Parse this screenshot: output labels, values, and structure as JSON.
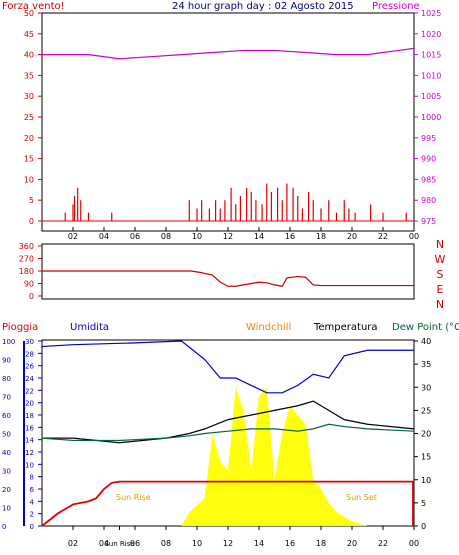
{
  "colors": {
    "wind": "#e00000",
    "pressure": "#cc00cc",
    "direction": "#cc0000",
    "rain": "#e00000",
    "humidity": "#0000cc",
    "windchill": "#ff8000",
    "temperature": "#000000",
    "dewpoint": "#006633",
    "solar": "#ffff00",
    "sun_label": "#d0a000",
    "axis_left_top": "#cc0000",
    "axis_left_bottom": "#0000cc",
    "frame": "#000000"
  },
  "top": {
    "left_title": "Forza vento!",
    "center_title": "24 hour graph day : 02 Agosto 2015",
    "right_title": "Pressione"
  },
  "bottom": {
    "legend": {
      "rain": "Pioggia",
      "humidity": "Umidita",
      "windchill": "Windchill",
      "temperature": "Temperatura",
      "dewpoint": "Dew Point (°C"
    },
    "sunrise_label": "Sun Rise",
    "sunset_label": "Sun Set",
    "sun_axis_label": "Sun Rise"
  },
  "chart_data": [
    {
      "type": "bar",
      "id": "wind-and-pressure",
      "x_ticks": [
        "02",
        "04",
        "06",
        "08",
        "10",
        "12",
        "14",
        "16",
        "18",
        "20",
        "22",
        "00"
      ],
      "left_axis": {
        "ticks": [
          0,
          5,
          10,
          15,
          20,
          25,
          30,
          35,
          40,
          45,
          50
        ],
        "ylim": [
          0,
          50
        ]
      },
      "right_axis": {
        "ticks": [
          975,
          980,
          985,
          990,
          995,
          1000,
          1005,
          1010,
          1015,
          1020,
          1025
        ],
        "ylim": [
          975,
          1025
        ]
      },
      "series": [
        {
          "name": "Forza vento!",
          "kind": "bar",
          "points": [
            [
              1.5,
              2
            ],
            [
              2.0,
              4
            ],
            [
              2.1,
              6
            ],
            [
              2.3,
              8
            ],
            [
              2.5,
              5
            ],
            [
              3.0,
              2
            ],
            [
              4.5,
              2
            ],
            [
              9.5,
              5
            ],
            [
              10.0,
              3
            ],
            [
              10.3,
              5
            ],
            [
              10.8,
              3
            ],
            [
              11.2,
              5
            ],
            [
              11.5,
              3
            ],
            [
              11.8,
              5
            ],
            [
              12.2,
              8
            ],
            [
              12.5,
              4
            ],
            [
              12.8,
              6
            ],
            [
              13.2,
              8
            ],
            [
              13.5,
              7
            ],
            [
              13.8,
              5
            ],
            [
              14.2,
              4
            ],
            [
              14.5,
              9
            ],
            [
              14.8,
              7
            ],
            [
              15.2,
              8
            ],
            [
              15.5,
              5
            ],
            [
              15.8,
              9
            ],
            [
              16.2,
              8
            ],
            [
              16.5,
              6
            ],
            [
              16.8,
              3
            ],
            [
              17.2,
              7
            ],
            [
              17.5,
              5
            ],
            [
              18.0,
              3
            ],
            [
              18.5,
              5
            ],
            [
              19.0,
              2
            ],
            [
              19.5,
              5
            ],
            [
              19.8,
              3
            ],
            [
              20.2,
              2
            ],
            [
              21.2,
              4
            ],
            [
              22.0,
              2
            ],
            [
              23.5,
              2
            ]
          ]
        },
        {
          "name": "Pressione",
          "kind": "line",
          "points": [
            [
              0,
              1015
            ],
            [
              1,
              1015
            ],
            [
              3,
              1015
            ],
            [
              5,
              1014
            ],
            [
              7,
              1014.5
            ],
            [
              9,
              1015
            ],
            [
              11,
              1015.5
            ],
            [
              13,
              1016
            ],
            [
              15,
              1016
            ],
            [
              17,
              1015.5
            ],
            [
              19,
              1015
            ],
            [
              21,
              1015
            ],
            [
              23,
              1016
            ],
            [
              24,
              1016.5
            ]
          ]
        }
      ]
    },
    {
      "type": "line",
      "id": "wind-direction",
      "x_ticks": [],
      "left_axis": {
        "ticks": [
          0,
          90,
          180,
          270,
          360
        ],
        "ylim": [
          0,
          360
        ]
      },
      "right_labels": [
        "N",
        "W",
        "S",
        "E",
        "N"
      ],
      "series": [
        {
          "name": "direction",
          "points": [
            [
              0,
              180
            ],
            [
              9.6,
              180
            ],
            [
              10.2,
              170
            ],
            [
              11,
              150
            ],
            [
              11.5,
              100
            ],
            [
              12,
              70
            ],
            [
              12.5,
              70
            ],
            [
              13,
              80
            ],
            [
              13.5,
              90
            ],
            [
              14,
              100
            ],
            [
              14.5,
              95
            ],
            [
              15,
              80
            ],
            [
              15.5,
              70
            ],
            [
              15.8,
              130
            ],
            [
              16.5,
              140
            ],
            [
              17,
              135
            ],
            [
              17.5,
              80
            ],
            [
              18,
              75
            ],
            [
              20,
              75
            ],
            [
              24,
              75
            ]
          ]
        }
      ]
    },
    {
      "type": "line",
      "id": "rain-humidity-temperature",
      "x_ticks": [
        "02",
        "04",
        "Sun Rise",
        "06",
        "08",
        "10",
        "12",
        "14",
        "16",
        "18",
        "20",
        "22",
        "00"
      ],
      "left_axis_rain": {
        "ticks": [
          0,
          2,
          4,
          6,
          8,
          10,
          12,
          14,
          16,
          18,
          20,
          22,
          24,
          26,
          28,
          30
        ],
        "ylim": [
          0,
          30
        ]
      },
      "left_axis_humidity": {
        "ticks": [
          0,
          10,
          20,
          30,
          40,
          50,
          60,
          70,
          80,
          90,
          100
        ],
        "ylim": [
          0,
          100
        ]
      },
      "right_axis": {
        "ticks": [
          0,
          5,
          10,
          15,
          20,
          25,
          30,
          35,
          40
        ],
        "ylim": [
          0,
          40
        ]
      },
      "series": [
        {
          "name": "Pioggia",
          "points": [
            [
              0,
              0
            ],
            [
              1,
              2
            ],
            [
              2,
              3.5
            ],
            [
              3,
              4
            ],
            [
              3.5,
              4.5
            ],
            [
              4,
              6
            ],
            [
              4.5,
              7
            ],
            [
              5,
              7.2
            ],
            [
              24,
              7.2
            ]
          ]
        },
        {
          "name": "Umidita",
          "points": [
            [
              0,
              97
            ],
            [
              2,
              98
            ],
            [
              6,
              99
            ],
            [
              9,
              100
            ],
            [
              10.5,
              90
            ],
            [
              11.5,
              80
            ],
            [
              12.5,
              80
            ],
            [
              13.5,
              76
            ],
            [
              14.5,
              72
            ],
            [
              15.5,
              72
            ],
            [
              16.5,
              76
            ],
            [
              17.5,
              82
            ],
            [
              18.5,
              80
            ],
            [
              19.5,
              92
            ],
            [
              21,
              95
            ],
            [
              24,
              95
            ]
          ]
        },
        {
          "name": "Temperatura",
          "points": [
            [
              0,
              19
            ],
            [
              2,
              19
            ],
            [
              5,
              18
            ],
            [
              8,
              19
            ],
            [
              9.5,
              20
            ],
            [
              10.5,
              21
            ],
            [
              12,
              23
            ],
            [
              13.5,
              24
            ],
            [
              15,
              25
            ],
            [
              16.5,
              26
            ],
            [
              17.5,
              27
            ],
            [
              18.5,
              25
            ],
            [
              19.5,
              23
            ],
            [
              21,
              22
            ],
            [
              24,
              21
            ]
          ]
        },
        {
          "name": "Dew Point (°C",
          "points": [
            [
              0,
              19
            ],
            [
              2,
              18.5
            ],
            [
              5,
              18.5
            ],
            [
              8,
              19
            ],
            [
              9.5,
              19.5
            ],
            [
              10.5,
              20
            ],
            [
              12,
              20.5
            ],
            [
              13.5,
              21
            ],
            [
              15,
              21
            ],
            [
              16.5,
              20.5
            ],
            [
              17.5,
              21
            ],
            [
              18.5,
              22
            ],
            [
              19.5,
              21.5
            ],
            [
              21,
              21
            ],
            [
              24,
              20.5
            ]
          ]
        },
        {
          "name": "solar",
          "kind": "area",
          "points": [
            [
              0,
              0
            ],
            [
              9,
              0
            ],
            [
              9.5,
              3
            ],
            [
              10.5,
              6
            ],
            [
              11,
              20
            ],
            [
              11.5,
              14
            ],
            [
              12,
              12
            ],
            [
              12.5,
              30
            ],
            [
              13,
              25
            ],
            [
              13.5,
              12
            ],
            [
              14,
              28
            ],
            [
              14.5,
              30
            ],
            [
              15,
              10
            ],
            [
              15.5,
              20
            ],
            [
              16,
              26
            ],
            [
              16.5,
              24
            ],
            [
              17,
              22
            ],
            [
              17.5,
              10
            ],
            [
              18,
              8
            ],
            [
              18.5,
              5
            ],
            [
              19,
              3
            ],
            [
              20,
              1
            ],
            [
              21,
              0
            ],
            [
              24,
              0
            ]
          ]
        }
      ]
    }
  ]
}
